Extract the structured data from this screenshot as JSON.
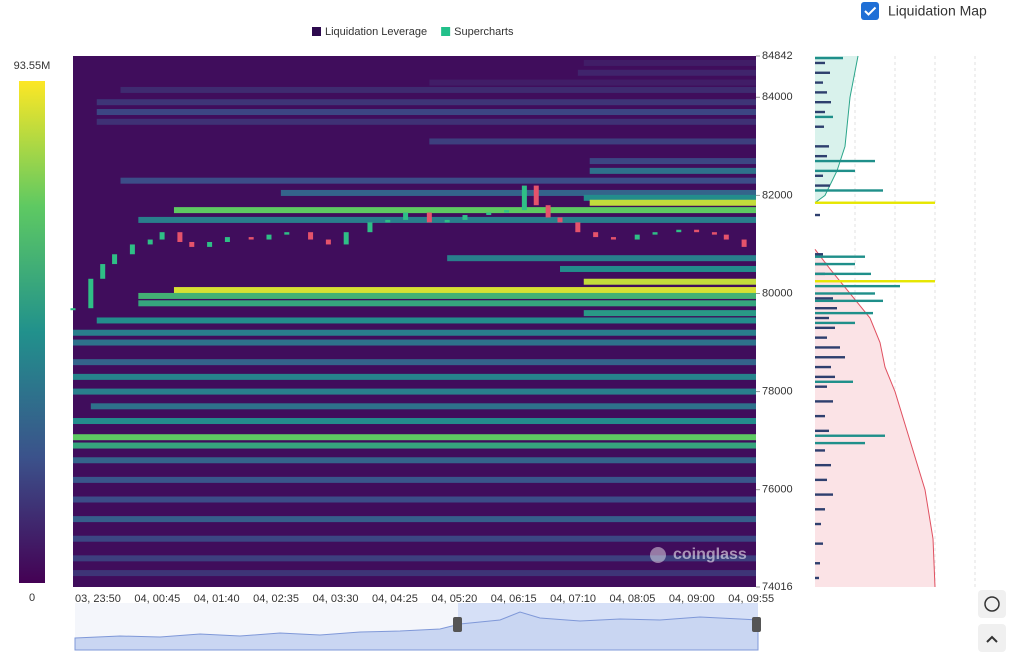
{
  "ui": {
    "checkbox_label": "Liquidation Map",
    "watermark": "coinglass"
  },
  "chart_data": [
    {
      "type": "heatmap",
      "legend": [
        {
          "name": "Liquidation Leverage",
          "color": "#2d0a4e"
        },
        {
          "name": "Supercharts",
          "color": "#22c08a"
        }
      ],
      "categories": [
        "03, 23:50",
        "04, 00:45",
        "04, 01:40",
        "04, 02:35",
        "04, 03:30",
        "04, 04:25",
        "04, 05:20",
        "04, 06:15",
        "04, 07:10",
        "04, 08:05",
        "04, 09:00",
        "04, 09:55"
      ],
      "xlim": [
        0,
        11.5
      ],
      "ylim": [
        74016,
        84842
      ],
      "yticks": [
        74016,
        76000,
        78000,
        80000,
        82000,
        84000,
        84842
      ],
      "colorbar": {
        "range": [
          0,
          93.55
        ],
        "ticks": [
          {
            "value": 93.55,
            "label": "93.55M"
          },
          0
        ]
      },
      "bands": [
        {
          "price": 84700,
          "from": 8.6,
          "value": 8
        },
        {
          "price": 84500,
          "from": 8.5,
          "value": 10
        },
        {
          "price": 84300,
          "from": 6,
          "value": 8
        },
        {
          "price": 84150,
          "from": 0.8,
          "value": 12
        },
        {
          "price": 83900,
          "from": 0.4,
          "value": 15
        },
        {
          "price": 83700,
          "from": 0.4,
          "value": 20
        },
        {
          "price": 83500,
          "from": 0.4,
          "value": 14
        },
        {
          "price": 83100,
          "from": 6,
          "value": 18
        },
        {
          "price": 82700,
          "from": 8.7,
          "value": 20
        },
        {
          "price": 82500,
          "from": 8.7,
          "value": 35
        },
        {
          "price": 82300,
          "from": 0.8,
          "value": 22
        },
        {
          "price": 82050,
          "from": 3.5,
          "value": 30
        },
        {
          "price": 81950,
          "from": 8.6,
          "value": 45
        },
        {
          "price": 81850,
          "from": 8.7,
          "value": 85
        },
        {
          "price": 81700,
          "from": 1.7,
          "value": 70
        },
        {
          "price": 81500,
          "from": 1.1,
          "value": 40
        },
        {
          "price": 80720,
          "from": 6.3,
          "value": 40
        },
        {
          "price": 80500,
          "from": 8.2,
          "value": 45
        },
        {
          "price": 80240,
          "from": 8.6,
          "value": 85
        },
        {
          "price": 80070,
          "from": 1.7,
          "value": 88
        },
        {
          "price": 79950,
          "from": 1.1,
          "value": 60
        },
        {
          "price": 79800,
          "from": 1.1,
          "value": 55
        },
        {
          "price": 79600,
          "from": 8.6,
          "value": 50
        },
        {
          "price": 79450,
          "from": 0.4,
          "value": 45
        },
        {
          "price": 79200,
          "from": 0,
          "value": 40
        },
        {
          "price": 79000,
          "from": 0,
          "value": 35
        },
        {
          "price": 78600,
          "from": 0,
          "value": 30
        },
        {
          "price": 78300,
          "from": 0,
          "value": 42
        },
        {
          "price": 78000,
          "from": 0,
          "value": 40
        },
        {
          "price": 77700,
          "from": 0.3,
          "value": 35
        },
        {
          "price": 77400,
          "from": 0,
          "value": 45
        },
        {
          "price": 77070,
          "from": 0,
          "value": 70
        },
        {
          "price": 76900,
          "from": 0,
          "value": 55
        },
        {
          "price": 76600,
          "from": 0,
          "value": 30
        },
        {
          "price": 76200,
          "from": 0,
          "value": 25
        },
        {
          "price": 75800,
          "from": 0,
          "value": 22
        },
        {
          "price": 75400,
          "from": 0,
          "value": 28
        },
        {
          "price": 75000,
          "from": 0,
          "value": 20
        },
        {
          "price": 74600,
          "from": 0,
          "value": 18
        },
        {
          "price": 74300,
          "from": 0,
          "value": 15
        }
      ],
      "candles": {
        "x": [
          0,
          0.3,
          0.5,
          0.7,
          1.0,
          1.3,
          1.5,
          1.8,
          2.0,
          2.3,
          2.6,
          3.0,
          3.3,
          3.6,
          4.0,
          4.3,
          4.6,
          5.0,
          5.3,
          5.6,
          6.0,
          6.3,
          6.6,
          7.0,
          7.3,
          7.6,
          7.8,
          8.0,
          8.2,
          8.5,
          8.8,
          9.1,
          9.5,
          9.8,
          10.2,
          10.5,
          10.8,
          11.0,
          11.3
        ],
        "close": [
          79700,
          80300,
          80600,
          80800,
          81000,
          81100,
          81250,
          81050,
          80950,
          81050,
          81150,
          81100,
          81200,
          81250,
          81100,
          81000,
          81250,
          81450,
          81500,
          81650,
          81450,
          81500,
          81600,
          81650,
          81700,
          82200,
          81800,
          81550,
          81450,
          81250,
          81150,
          81100,
          81200,
          81250,
          81300,
          81250,
          81200,
          81100,
          80950
        ]
      }
    },
    {
      "type": "bar",
      "orientation": "horizontal",
      "xlim": [
        0,
        160
      ],
      "ylim": [
        74016,
        84842
      ],
      "series": [
        {
          "color": "#2e3f6e",
          "prices": [
            84700,
            84500,
            84300,
            84100,
            83900,
            83700,
            83400,
            83000,
            82800,
            82400,
            82200,
            81600,
            80800,
            80600,
            80400,
            79900,
            79700,
            79500,
            79300,
            79100,
            78900,
            78700,
            78500,
            78300,
            78100,
            77800,
            77500,
            77200,
            76800,
            76500,
            76200,
            75900,
            75600,
            75300,
            74900,
            74500,
            74200
          ],
          "values": [
            10,
            15,
            8,
            12,
            16,
            10,
            9,
            14,
            12,
            8,
            15,
            5,
            8,
            12,
            10,
            18,
            22,
            14,
            20,
            12,
            25,
            30,
            16,
            20,
            12,
            18,
            10,
            14,
            10,
            16,
            12,
            18,
            10,
            6,
            8,
            5,
            4
          ]
        },
        {
          "color": "#1f8f8a",
          "prices": [
            84800,
            83600,
            82700,
            82500,
            82100,
            80750,
            80600,
            80400,
            80150,
            80000,
            79850,
            79600,
            79400,
            78200,
            77100,
            76950
          ],
          "values": [
            28,
            18,
            60,
            40,
            68,
            50,
            40,
            56,
            85,
            60,
            68,
            58,
            40,
            38,
            70,
            50
          ]
        },
        {
          "color": "#e6e600",
          "prices": [
            81850,
            80250
          ],
          "values": [
            120,
            120
          ]
        }
      ],
      "curves": [
        {
          "color": "#2aa58a",
          "fill": "#d9f2ec",
          "prices": [
            84842,
            84000,
            83000,
            82500,
            82000,
            81850
          ],
          "values": [
            43,
            35,
            30,
            22,
            10,
            0
          ]
        },
        {
          "color": "#e05060",
          "fill": "#fbe3e6",
          "prices": [
            80900,
            80500,
            80000,
            79500,
            79000,
            78500,
            78000,
            77000,
            76000,
            75000,
            74016
          ],
          "values": [
            0,
            15,
            35,
            55,
            65,
            70,
            80,
            95,
            110,
            118,
            120
          ]
        }
      ]
    }
  ]
}
